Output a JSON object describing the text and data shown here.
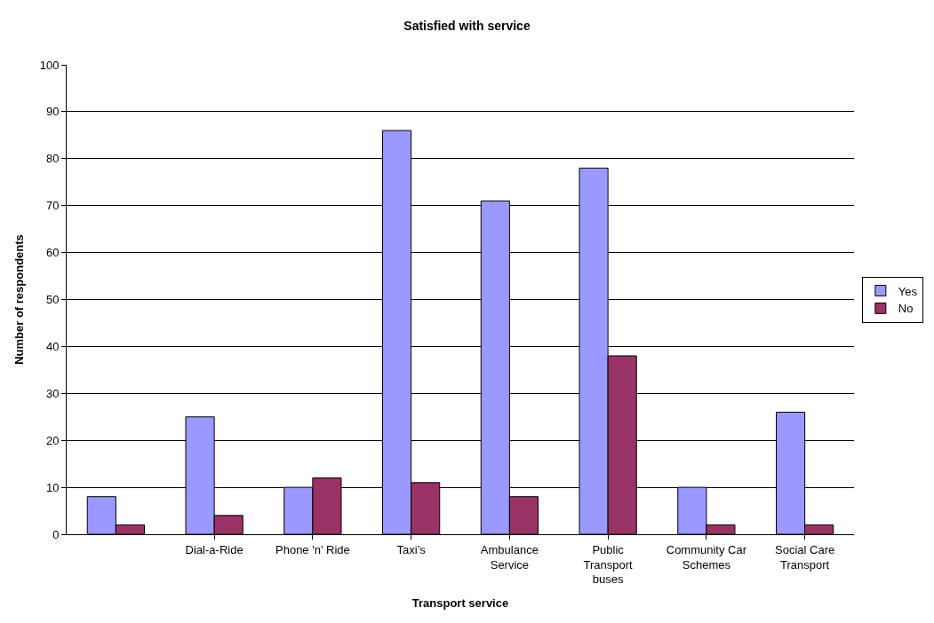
{
  "chart_data": {
    "type": "bar",
    "title": "Satisfied with service",
    "xlabel": "Transport service",
    "ylabel": "Number of respondents",
    "categories": [
      null,
      "Dial-a-Ride",
      "Phone 'n' Ride",
      "Taxi's",
      "Ambulance Service",
      "Public Transport buses",
      "Community Car Schemes",
      "Social Care Transport"
    ],
    "series": [
      {
        "name": "Yes",
        "color": "#9999ff",
        "values": [
          8,
          25,
          10,
          86,
          71,
          78,
          10,
          26
        ]
      },
      {
        "name": "No",
        "color": "#993366",
        "values": [
          2,
          4,
          12,
          11,
          8,
          38,
          2,
          2
        ]
      }
    ],
    "ylim": [
      0,
      100
    ],
    "yticks": [
      0,
      10,
      20,
      30,
      40,
      50,
      60,
      70,
      80,
      90,
      100
    ],
    "grid": "y",
    "legend": "right"
  }
}
